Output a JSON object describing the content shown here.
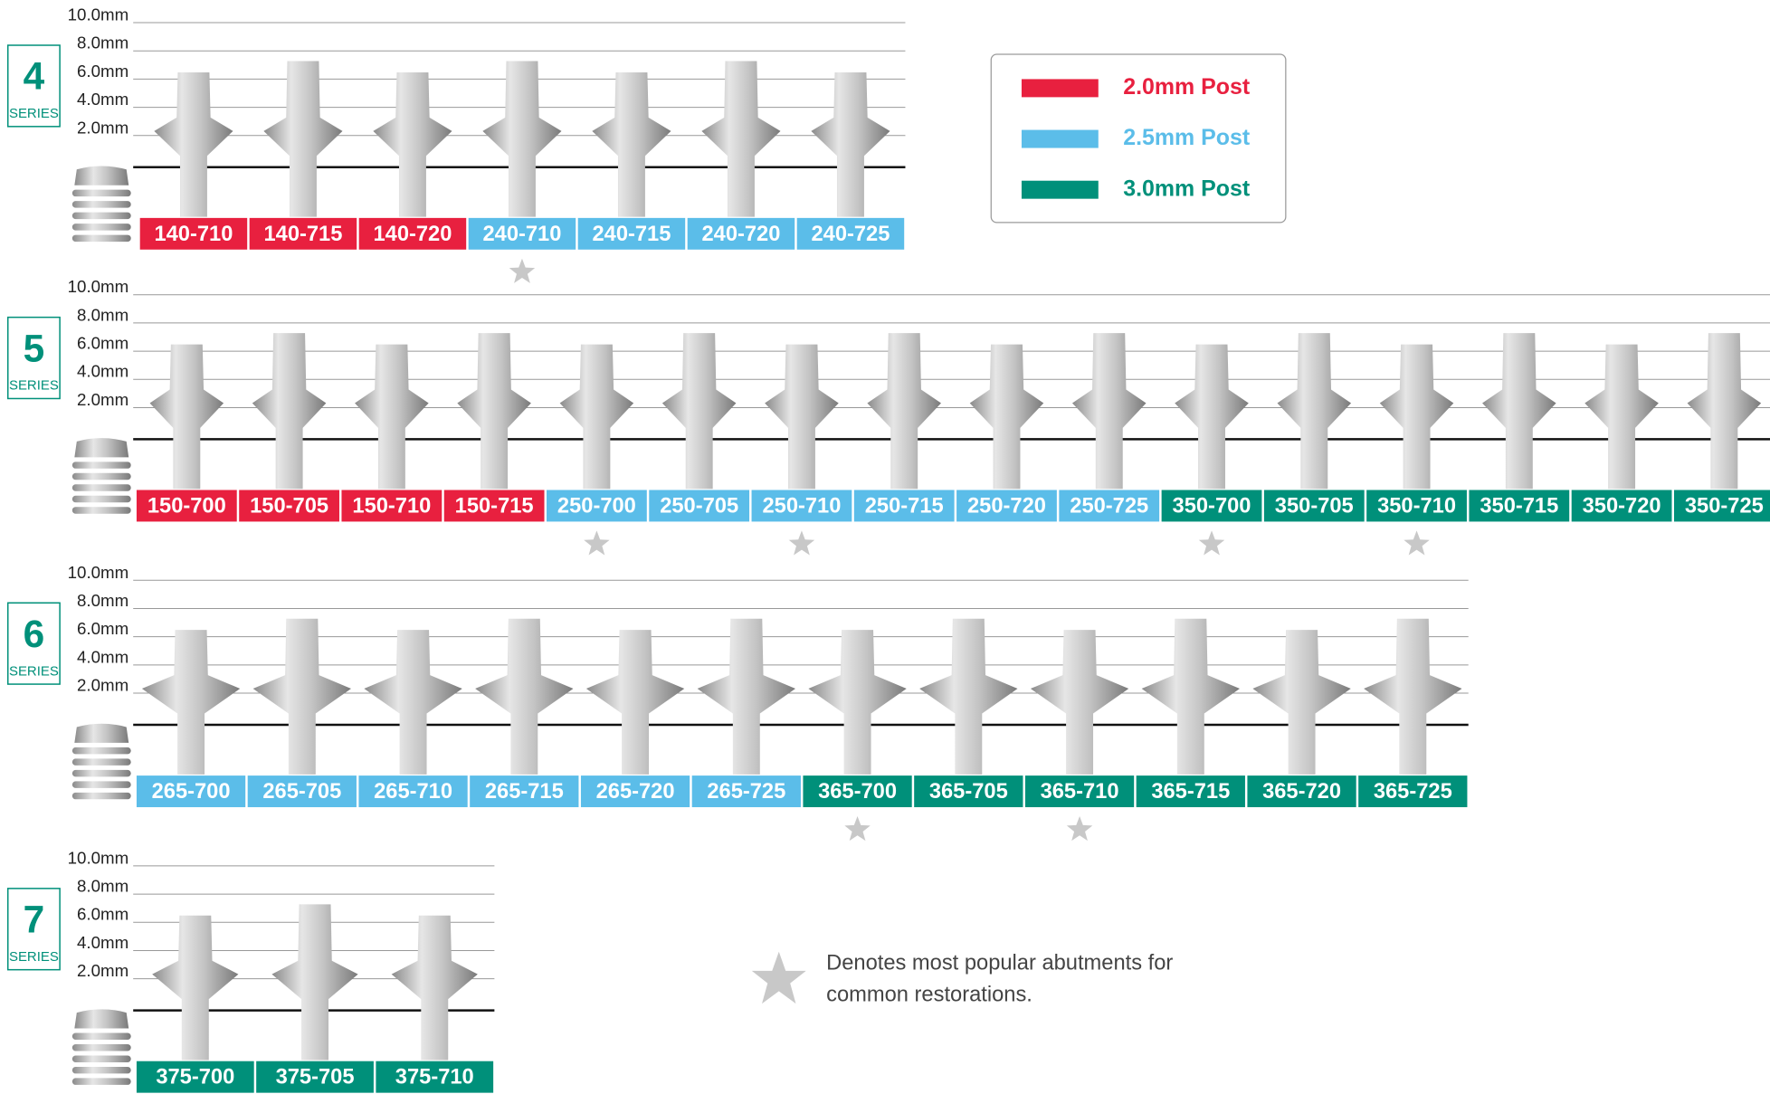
{
  "legend": [
    {
      "label": "2.0mm Post",
      "color": "#e8203f"
    },
    {
      "label": "2.5mm Post",
      "color": "#5bbde9"
    },
    {
      "label": "3.0mm Post",
      "color": "#00907a"
    }
  ],
  "scale_labels": [
    "10.0mm",
    "8.0mm",
    "6.0mm",
    "4.0mm",
    "2.0mm"
  ],
  "series_label": "SERIES",
  "series": [
    {
      "number": "4",
      "items": [
        {
          "code": "140-710",
          "post": 0,
          "popular": false
        },
        {
          "code": "140-715",
          "post": 0,
          "popular": false
        },
        {
          "code": "140-720",
          "post": 0,
          "popular": false
        },
        {
          "code": "240-710",
          "post": 1,
          "popular": true
        },
        {
          "code": "240-715",
          "post": 1,
          "popular": false
        },
        {
          "code": "240-720",
          "post": 1,
          "popular": false
        },
        {
          "code": "240-725",
          "post": 1,
          "popular": false
        }
      ]
    },
    {
      "number": "5",
      "items": [
        {
          "code": "150-700",
          "post": 0,
          "popular": false
        },
        {
          "code": "150-705",
          "post": 0,
          "popular": false
        },
        {
          "code": "150-710",
          "post": 0,
          "popular": false
        },
        {
          "code": "150-715",
          "post": 0,
          "popular": false
        },
        {
          "code": "250-700",
          "post": 1,
          "popular": true
        },
        {
          "code": "250-705",
          "post": 1,
          "popular": false
        },
        {
          "code": "250-710",
          "post": 1,
          "popular": true
        },
        {
          "code": "250-715",
          "post": 1,
          "popular": false
        },
        {
          "code": "250-720",
          "post": 1,
          "popular": false
        },
        {
          "code": "250-725",
          "post": 1,
          "popular": false
        },
        {
          "code": "350-700",
          "post": 2,
          "popular": true
        },
        {
          "code": "350-705",
          "post": 2,
          "popular": false
        },
        {
          "code": "350-710",
          "post": 2,
          "popular": true
        },
        {
          "code": "350-715",
          "post": 2,
          "popular": false
        },
        {
          "code": "350-720",
          "post": 2,
          "popular": false
        },
        {
          "code": "350-725",
          "post": 2,
          "popular": false
        }
      ]
    },
    {
      "number": "6",
      "items": [
        {
          "code": "265-700",
          "post": 1,
          "popular": false
        },
        {
          "code": "265-705",
          "post": 1,
          "popular": false
        },
        {
          "code": "265-710",
          "post": 1,
          "popular": false
        },
        {
          "code": "265-715",
          "post": 1,
          "popular": false
        },
        {
          "code": "265-720",
          "post": 1,
          "popular": false
        },
        {
          "code": "265-725",
          "post": 1,
          "popular": false
        },
        {
          "code": "365-700",
          "post": 2,
          "popular": true
        },
        {
          "code": "365-705",
          "post": 2,
          "popular": false
        },
        {
          "code": "365-710",
          "post": 2,
          "popular": true
        },
        {
          "code": "365-715",
          "post": 2,
          "popular": false
        },
        {
          "code": "365-720",
          "post": 2,
          "popular": false
        },
        {
          "code": "365-725",
          "post": 2,
          "popular": false
        }
      ]
    },
    {
      "number": "7",
      "items": [
        {
          "code": "375-700",
          "post": 2,
          "popular": false
        },
        {
          "code": "375-705",
          "post": 2,
          "popular": false
        },
        {
          "code": "375-710",
          "post": 2,
          "popular": false
        }
      ]
    }
  ],
  "note": [
    "Denotes most popular abutments for",
    "common restorations."
  ]
}
